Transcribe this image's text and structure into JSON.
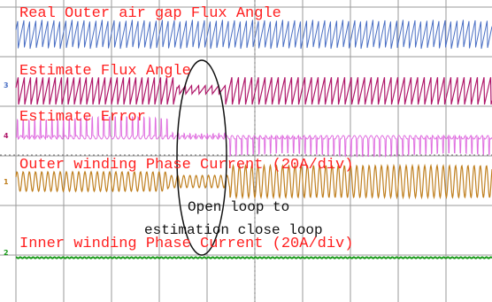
{
  "traces": [
    {
      "label": "Real Outer air gap Flux Angle"
    },
    {
      "label": "Estimate Flux Angle",
      "channel": "3"
    },
    {
      "label": "Estimate Error",
      "channel": "4"
    },
    {
      "label": "Outer winding Phase Current (20A/div)",
      "channel": "1"
    },
    {
      "label": "Inner winding Phase Current (20A/div)",
      "channel": "2"
    }
  ],
  "annotation": {
    "lines": [
      "Open loop to",
      "estimation close loop"
    ]
  }
}
